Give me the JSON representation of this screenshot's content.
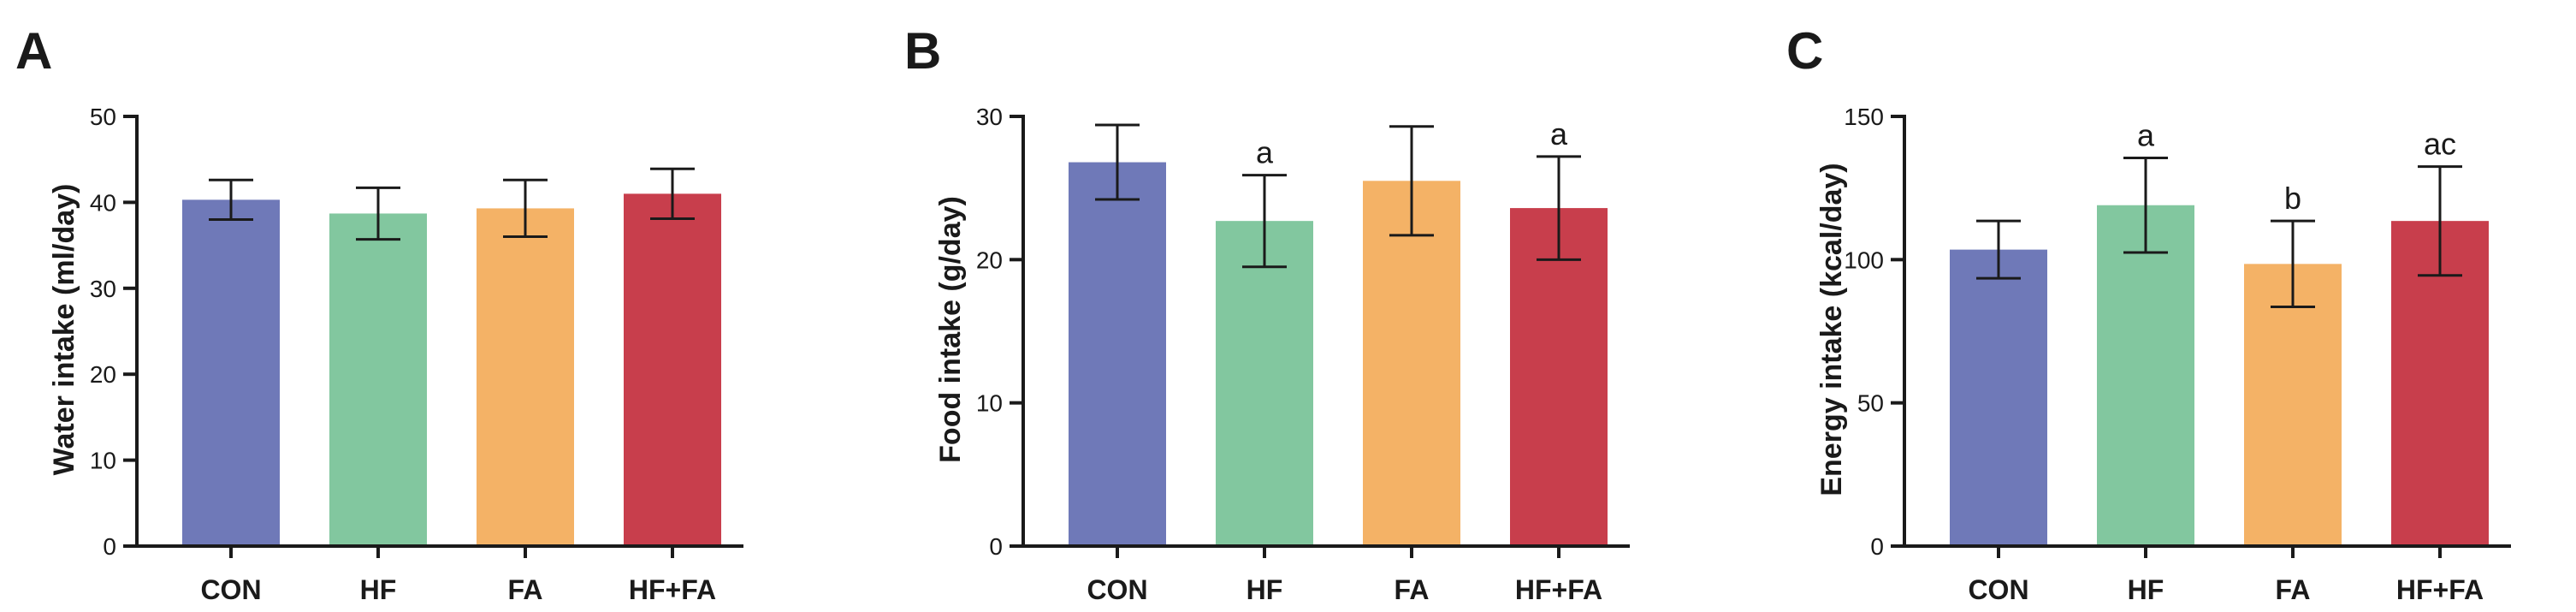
{
  "chart_data": [
    {
      "type": "bar",
      "panel": "A",
      "title": "",
      "xlabel": "",
      "ylabel": "Water intake (ml/day)",
      "ylim": [
        0,
        50
      ],
      "yticks": [
        0,
        10,
        20,
        30,
        40,
        50
      ],
      "categories": [
        "CON",
        "HF",
        "FA",
        "HF+FA"
      ],
      "values": [
        40.3,
        38.7,
        39.3,
        41.0
      ],
      "errors": [
        2.3,
        3.0,
        3.3,
        2.9
      ],
      "significance": [
        "",
        "",
        "",
        ""
      ],
      "colors": [
        "#6f79b8",
        "#82c79f",
        "#f4b266",
        "#c83e4c"
      ]
    },
    {
      "type": "bar",
      "panel": "B",
      "title": "",
      "xlabel": "",
      "ylabel": "Food intake (g/day)",
      "ylim": [
        0,
        30
      ],
      "yticks": [
        0,
        10,
        20,
        30
      ],
      "categories": [
        "CON",
        "HF",
        "FA",
        "HF+FA"
      ],
      "values": [
        26.8,
        22.7,
        25.5,
        23.6
      ],
      "errors": [
        2.6,
        3.2,
        3.8,
        3.6
      ],
      "significance": [
        "",
        "a",
        "",
        "a"
      ],
      "colors": [
        "#6f79b8",
        "#82c79f",
        "#f4b266",
        "#c83e4c"
      ]
    },
    {
      "type": "bar",
      "panel": "C",
      "title": "",
      "xlabel": "",
      "ylabel": "Energy intake (kcal/day)",
      "ylim": [
        0,
        150
      ],
      "yticks": [
        0,
        50,
        100,
        150
      ],
      "categories": [
        "CON",
        "HF",
        "FA",
        "HF+FA"
      ],
      "values": [
        103.5,
        119.0,
        98.5,
        113.5
      ],
      "errors": [
        10.0,
        16.5,
        15.0,
        19.0
      ],
      "significance": [
        "",
        "a",
        "b",
        "ac"
      ],
      "colors": [
        "#6f79b8",
        "#82c79f",
        "#f4b266",
        "#c83e4c"
      ]
    }
  ]
}
